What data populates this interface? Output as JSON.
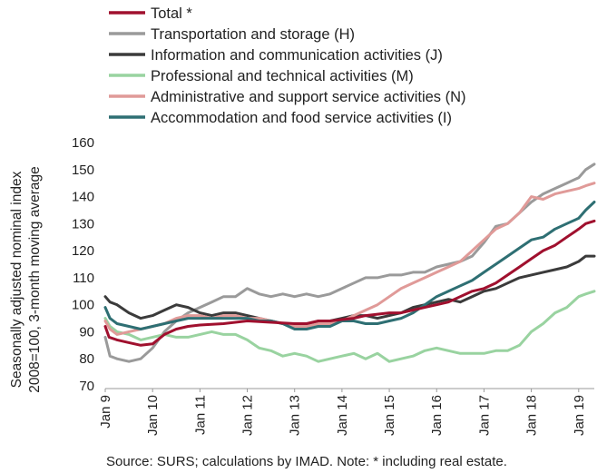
{
  "chart_data": {
    "type": "line",
    "title": "",
    "ylabel_lines": [
      "Seasonally adjusted nominal index",
      "2008=100, 3-month moving average"
    ],
    "xlabel": "",
    "x_tick_labels": [
      "Jan 9",
      "Jan 10",
      "Jan 11",
      "Jan 12",
      "Jan 13",
      "Jan 14",
      "Jan 15",
      "Jan 16",
      "Jan 17",
      "Jan 18",
      "Jan 19"
    ],
    "ylim": [
      70,
      160
    ],
    "y_ticks": [
      70,
      80,
      90,
      100,
      110,
      120,
      130,
      140,
      150,
      160
    ],
    "x_range": [
      2009.0,
      2019.33
    ],
    "grid": false,
    "legend_position": "top-left",
    "source_note": "Source:  SURS; calculations by IMAD. Note: * including real estate.",
    "series": [
      {
        "name": "Total *",
        "color": "#a0102e",
        "points": [
          [
            2009.0,
            92
          ],
          [
            2009.08,
            88
          ],
          [
            2009.25,
            87
          ],
          [
            2009.5,
            86
          ],
          [
            2009.75,
            85
          ],
          [
            2010.0,
            85.5
          ],
          [
            2010.25,
            89
          ],
          [
            2010.5,
            91
          ],
          [
            2010.75,
            92
          ],
          [
            2011.0,
            92.5
          ],
          [
            2011.5,
            93
          ],
          [
            2012.0,
            94
          ],
          [
            2012.5,
            93.5
          ],
          [
            2013.0,
            93
          ],
          [
            2013.25,
            93
          ],
          [
            2013.5,
            94
          ],
          [
            2013.75,
            94
          ],
          [
            2014.0,
            94.5
          ],
          [
            2014.25,
            95
          ],
          [
            2014.5,
            96
          ],
          [
            2014.75,
            96.5
          ],
          [
            2015.0,
            97
          ],
          [
            2015.25,
            97
          ],
          [
            2015.5,
            98
          ],
          [
            2015.75,
            99
          ],
          [
            2016.0,
            100
          ],
          [
            2016.25,
            101
          ],
          [
            2016.5,
            103
          ],
          [
            2016.75,
            105
          ],
          [
            2017.0,
            106
          ],
          [
            2017.25,
            108
          ],
          [
            2017.5,
            111
          ],
          [
            2017.75,
            114
          ],
          [
            2018.0,
            117
          ],
          [
            2018.25,
            120
          ],
          [
            2018.5,
            122
          ],
          [
            2018.75,
            125
          ],
          [
            2019.0,
            128
          ],
          [
            2019.15,
            130
          ],
          [
            2019.33,
            131
          ]
        ]
      },
      {
        "name": "Transportation and storage (H)",
        "color": "#9a9a9a",
        "points": [
          [
            2009.0,
            88
          ],
          [
            2009.1,
            81
          ],
          [
            2009.25,
            80
          ],
          [
            2009.5,
            79
          ],
          [
            2009.75,
            80
          ],
          [
            2010.0,
            84
          ],
          [
            2010.25,
            90
          ],
          [
            2010.5,
            94
          ],
          [
            2010.75,
            97
          ],
          [
            2011.0,
            99
          ],
          [
            2011.25,
            101
          ],
          [
            2011.5,
            103
          ],
          [
            2011.75,
            103
          ],
          [
            2012.0,
            106
          ],
          [
            2012.25,
            104
          ],
          [
            2012.5,
            103
          ],
          [
            2012.75,
            104
          ],
          [
            2013.0,
            103
          ],
          [
            2013.25,
            104
          ],
          [
            2013.5,
            103
          ],
          [
            2013.75,
            104
          ],
          [
            2014.0,
            106
          ],
          [
            2014.25,
            108
          ],
          [
            2014.5,
            110
          ],
          [
            2014.75,
            110
          ],
          [
            2015.0,
            111
          ],
          [
            2015.25,
            111
          ],
          [
            2015.5,
            112
          ],
          [
            2015.75,
            112
          ],
          [
            2016.0,
            114
          ],
          [
            2016.25,
            115
          ],
          [
            2016.5,
            116
          ],
          [
            2016.75,
            118
          ],
          [
            2017.0,
            123
          ],
          [
            2017.25,
            129
          ],
          [
            2017.5,
            130
          ],
          [
            2017.75,
            134
          ],
          [
            2018.0,
            138
          ],
          [
            2018.25,
            141
          ],
          [
            2018.5,
            143
          ],
          [
            2018.75,
            145
          ],
          [
            2019.0,
            147
          ],
          [
            2019.15,
            150
          ],
          [
            2019.33,
            152
          ]
        ]
      },
      {
        "name": "Information and communication activities (J)",
        "color": "#3b3b3b",
        "points": [
          [
            2009.0,
            103
          ],
          [
            2009.1,
            101
          ],
          [
            2009.25,
            100
          ],
          [
            2009.5,
            97
          ],
          [
            2009.75,
            95
          ],
          [
            2010.0,
            96
          ],
          [
            2010.25,
            98
          ],
          [
            2010.5,
            100
          ],
          [
            2010.75,
            99
          ],
          [
            2011.0,
            97
          ],
          [
            2011.25,
            96
          ],
          [
            2011.5,
            97
          ],
          [
            2011.75,
            97
          ],
          [
            2012.0,
            96
          ],
          [
            2012.25,
            95
          ],
          [
            2012.5,
            94
          ],
          [
            2012.75,
            93
          ],
          [
            2013.0,
            93
          ],
          [
            2013.25,
            92
          ],
          [
            2013.5,
            94
          ],
          [
            2013.75,
            94
          ],
          [
            2014.0,
            95
          ],
          [
            2014.25,
            96
          ],
          [
            2014.5,
            96
          ],
          [
            2014.75,
            95
          ],
          [
            2015.0,
            96
          ],
          [
            2015.25,
            97
          ],
          [
            2015.5,
            99
          ],
          [
            2015.75,
            100
          ],
          [
            2016.0,
            101
          ],
          [
            2016.25,
            102
          ],
          [
            2016.5,
            101
          ],
          [
            2016.75,
            103
          ],
          [
            2017.0,
            105
          ],
          [
            2017.25,
            106
          ],
          [
            2017.5,
            108
          ],
          [
            2017.75,
            110
          ],
          [
            2018.0,
            111
          ],
          [
            2018.25,
            112
          ],
          [
            2018.5,
            113
          ],
          [
            2018.75,
            114
          ],
          [
            2019.0,
            116
          ],
          [
            2019.15,
            118
          ],
          [
            2019.33,
            118
          ]
        ]
      },
      {
        "name": "Professional and technical activities (M)",
        "color": "#99d3a0",
        "points": [
          [
            2009.0,
            95
          ],
          [
            2009.1,
            92
          ],
          [
            2009.25,
            90
          ],
          [
            2009.5,
            89
          ],
          [
            2009.75,
            87
          ],
          [
            2010.0,
            88
          ],
          [
            2010.25,
            89
          ],
          [
            2010.5,
            88
          ],
          [
            2010.75,
            88
          ],
          [
            2011.0,
            89
          ],
          [
            2011.25,
            90
          ],
          [
            2011.5,
            89
          ],
          [
            2011.75,
            89
          ],
          [
            2012.0,
            87
          ],
          [
            2012.25,
            84
          ],
          [
            2012.5,
            83
          ],
          [
            2012.75,
            81
          ],
          [
            2013.0,
            82
          ],
          [
            2013.25,
            81
          ],
          [
            2013.5,
            79
          ],
          [
            2013.75,
            80
          ],
          [
            2014.0,
            81
          ],
          [
            2014.25,
            82
          ],
          [
            2014.5,
            80
          ],
          [
            2014.75,
            82
          ],
          [
            2015.0,
            79
          ],
          [
            2015.25,
            80
          ],
          [
            2015.5,
            81
          ],
          [
            2015.75,
            83
          ],
          [
            2016.0,
            84
          ],
          [
            2016.25,
            83
          ],
          [
            2016.5,
            82
          ],
          [
            2016.75,
            82
          ],
          [
            2017.0,
            82
          ],
          [
            2017.25,
            83
          ],
          [
            2017.5,
            83
          ],
          [
            2017.75,
            85
          ],
          [
            2018.0,
            90
          ],
          [
            2018.25,
            93
          ],
          [
            2018.5,
            97
          ],
          [
            2018.75,
            99
          ],
          [
            2019.0,
            103
          ],
          [
            2019.15,
            104
          ],
          [
            2019.33,
            105
          ]
        ]
      },
      {
        "name": "Administrative and support service activities (N)",
        "color": "#e09a98",
        "points": [
          [
            2009.0,
            94
          ],
          [
            2009.1,
            91
          ],
          [
            2009.25,
            89
          ],
          [
            2009.5,
            90
          ],
          [
            2009.75,
            91
          ],
          [
            2010.0,
            92
          ],
          [
            2010.25,
            93
          ],
          [
            2010.5,
            95
          ],
          [
            2010.75,
            96
          ],
          [
            2011.0,
            96
          ],
          [
            2011.25,
            95
          ],
          [
            2011.5,
            96
          ],
          [
            2011.75,
            96
          ],
          [
            2012.0,
            95
          ],
          [
            2012.25,
            95
          ],
          [
            2012.5,
            94
          ],
          [
            2012.75,
            93
          ],
          [
            2013.0,
            92
          ],
          [
            2013.25,
            92
          ],
          [
            2013.5,
            93
          ],
          [
            2013.75,
            93
          ],
          [
            2014.0,
            94
          ],
          [
            2014.25,
            96
          ],
          [
            2014.5,
            98
          ],
          [
            2014.75,
            100
          ],
          [
            2015.0,
            103
          ],
          [
            2015.25,
            106
          ],
          [
            2015.5,
            108
          ],
          [
            2015.75,
            110
          ],
          [
            2016.0,
            112
          ],
          [
            2016.25,
            114
          ],
          [
            2016.5,
            116
          ],
          [
            2016.75,
            120
          ],
          [
            2017.0,
            124
          ],
          [
            2017.25,
            128
          ],
          [
            2017.5,
            130
          ],
          [
            2017.75,
            134
          ],
          [
            2018.0,
            140
          ],
          [
            2018.25,
            139
          ],
          [
            2018.5,
            141
          ],
          [
            2018.75,
            142
          ],
          [
            2019.0,
            143
          ],
          [
            2019.15,
            144
          ],
          [
            2019.33,
            145
          ]
        ]
      },
      {
        "name": "Accommodation and food service activities (I)",
        "color": "#2e6f73",
        "points": [
          [
            2009.0,
            99
          ],
          [
            2009.1,
            95
          ],
          [
            2009.25,
            93
          ],
          [
            2009.5,
            92
          ],
          [
            2009.75,
            91
          ],
          [
            2010.0,
            92
          ],
          [
            2010.25,
            93
          ],
          [
            2010.5,
            94
          ],
          [
            2010.75,
            95
          ],
          [
            2011.0,
            95
          ],
          [
            2011.25,
            95
          ],
          [
            2011.5,
            95
          ],
          [
            2011.75,
            95
          ],
          [
            2012.0,
            95
          ],
          [
            2012.25,
            94
          ],
          [
            2012.5,
            94
          ],
          [
            2012.75,
            93
          ],
          [
            2013.0,
            91
          ],
          [
            2013.25,
            91
          ],
          [
            2013.5,
            92
          ],
          [
            2013.75,
            92
          ],
          [
            2014.0,
            94
          ],
          [
            2014.25,
            94
          ],
          [
            2014.5,
            93
          ],
          [
            2014.75,
            93
          ],
          [
            2015.0,
            94
          ],
          [
            2015.25,
            95
          ],
          [
            2015.5,
            97
          ],
          [
            2015.75,
            100
          ],
          [
            2016.0,
            103
          ],
          [
            2016.25,
            105
          ],
          [
            2016.5,
            107
          ],
          [
            2016.75,
            109
          ],
          [
            2017.0,
            112
          ],
          [
            2017.25,
            115
          ],
          [
            2017.5,
            118
          ],
          [
            2017.75,
            121
          ],
          [
            2018.0,
            124
          ],
          [
            2018.25,
            125
          ],
          [
            2018.5,
            128
          ],
          [
            2018.75,
            130
          ],
          [
            2019.0,
            132
          ],
          [
            2019.15,
            135
          ],
          [
            2019.33,
            138
          ]
        ]
      }
    ]
  }
}
